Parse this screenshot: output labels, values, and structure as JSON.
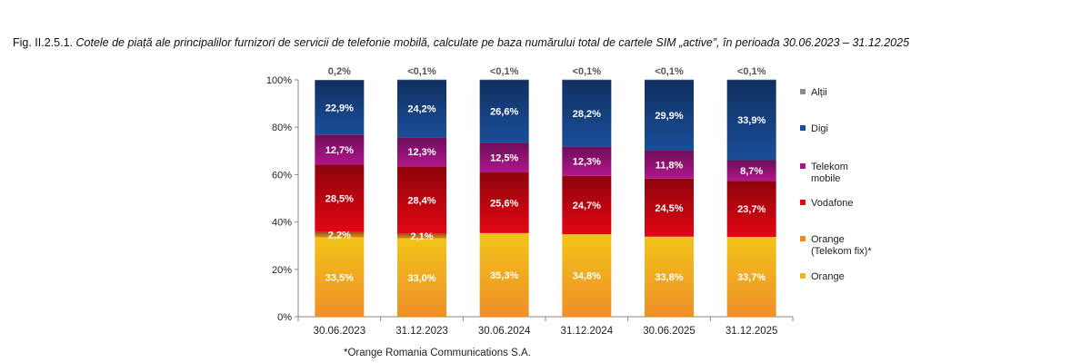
{
  "figure": {
    "label": "Fig. II.2.5.1.",
    "title": "Cotele de piață ale principalilor furnizori de servicii de telefonie mobilă, calculate pe baza numărului total de cartele SIM „active”, în perioada 30.06.2023 – 31.12.2025",
    "footnote": "*Orange Romania Communications S.A."
  },
  "chart_data": {
    "type": "bar",
    "stacked": true,
    "categories": [
      "30.06.2023",
      "31.12.2023",
      "30.06.2024",
      "31.12.2024",
      "30.06.2025",
      "31.12.2025"
    ],
    "ylim": [
      0,
      100
    ],
    "yticks": [
      "0%",
      "20%",
      "40%",
      "60%",
      "80%",
      "100%"
    ],
    "grid": false,
    "legend_position": "right",
    "series": [
      {
        "name": "Orange",
        "color": "#f2b51b",
        "values": [
          33.5,
          33.0,
          35.3,
          34.8,
          33.8,
          33.7
        ],
        "labels": [
          "33,5%",
          "33,0%",
          "35,3%",
          "34,8%",
          "33,8%",
          "33,7%"
        ]
      },
      {
        "name": "Orange (Telekom fix)*",
        "color": "#ec8a1e",
        "values": [
          2.2,
          2.1,
          0,
          0,
          0,
          0
        ],
        "labels": [
          "2,2%",
          "2,1%",
          "",
          "",
          "",
          ""
        ]
      },
      {
        "name": "Vodafone",
        "color": "#e30613",
        "values": [
          28.5,
          28.4,
          25.6,
          24.7,
          24.5,
          23.7
        ],
        "labels": [
          "28,5%",
          "28,4%",
          "25,6%",
          "24,7%",
          "24,5%",
          "23,7%"
        ]
      },
      {
        "name": "Telekom mobile",
        "color": "#b0168c",
        "values": [
          12.7,
          12.3,
          12.5,
          12.3,
          11.8,
          8.7
        ],
        "labels": [
          "12,7%",
          "12,3%",
          "12,5%",
          "12,3%",
          "11,8%",
          "8,7%"
        ]
      },
      {
        "name": "Digi",
        "color": "#1a4e9a",
        "values": [
          22.9,
          24.2,
          26.6,
          28.2,
          29.9,
          33.9
        ],
        "labels": [
          "22,9%",
          "24,2%",
          "26,6%",
          "28,2%",
          "29,9%",
          "33,9%"
        ]
      },
      {
        "name": "Alții",
        "color": "#8c8c8c",
        "values": [
          0.2,
          0.1,
          0.1,
          0.1,
          0.1,
          0.1
        ],
        "labels": [
          "0,2%",
          "<0,1%",
          "<0,1%",
          "<0,1%",
          "<0,1%",
          "<0,1%"
        ]
      }
    ],
    "legend": [
      {
        "name": "Alții",
        "color": "#8c8c8c"
      },
      {
        "name": "Digi",
        "color": "#1a4e9a"
      },
      {
        "name": "Telekom mobile",
        "color": "#b0168c"
      },
      {
        "name": "Vodafone",
        "color": "#e30613"
      },
      {
        "name": "Orange (Telekom fix)*",
        "color": "#ec8a1e"
      },
      {
        "name": "Orange",
        "color": "#f2b51b"
      }
    ]
  }
}
